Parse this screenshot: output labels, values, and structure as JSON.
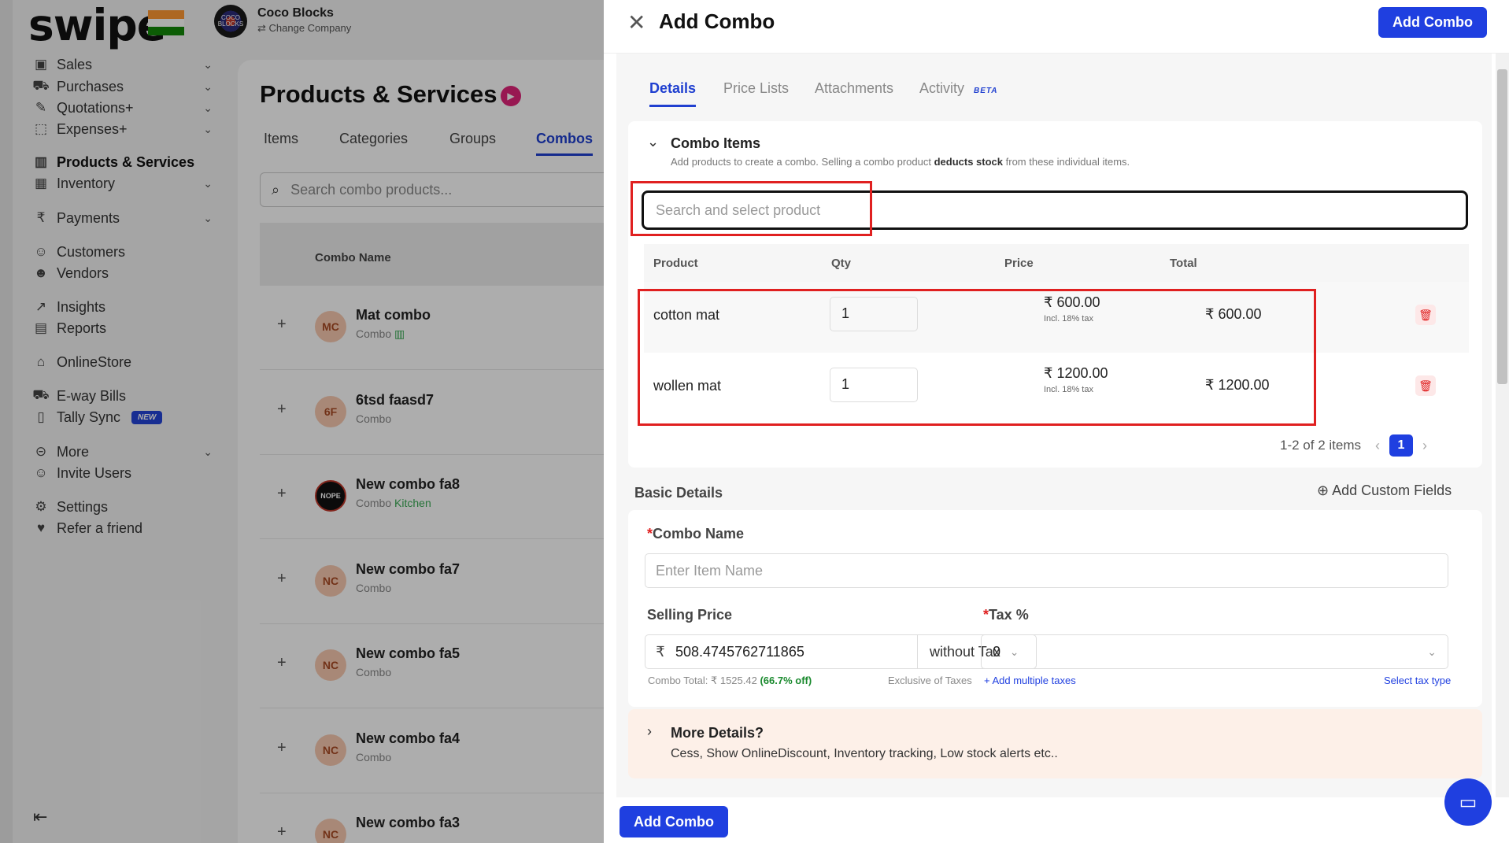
{
  "left": {
    "brand": "swipe",
    "company": {
      "name": "Coco Blocks",
      "change": "⇄ Change Company",
      "logo_text": "COCO BLOCKS"
    },
    "nav": [
      {
        "label": "Sales",
        "icon": "sales-icon",
        "glyph": "▣",
        "chevron": true
      },
      {
        "label": "Purchases",
        "icon": "cart-icon",
        "glyph": "⛟",
        "chevron": true
      },
      {
        "label": "Quotations+",
        "icon": "pen-icon",
        "glyph": "✎",
        "chevron": true
      },
      {
        "label": "Expenses+",
        "icon": "tag-icon",
        "glyph": "⬚",
        "chevron": true
      },
      {
        "label": "Products & Services",
        "icon": "barcode-icon",
        "glyph": "▥",
        "chevron": false,
        "active": true
      },
      {
        "label": "Inventory",
        "icon": "inventory-icon",
        "glyph": "▦",
        "chevron": true
      },
      {
        "label": "Payments",
        "icon": "rupee-icon",
        "glyph": "₹",
        "chevron": true
      },
      {
        "label": "Customers",
        "icon": "user-icon",
        "glyph": "☺",
        "chevron": false
      },
      {
        "label": "Vendors",
        "icon": "users-icon",
        "glyph": "☻",
        "chevron": false
      },
      {
        "label": "Insights",
        "icon": "chart-icon",
        "glyph": "↗",
        "chevron": false
      },
      {
        "label": "Reports",
        "icon": "report-icon",
        "glyph": "▤",
        "chevron": false
      },
      {
        "label": "OnlineStore",
        "icon": "store-icon",
        "glyph": "⌂",
        "chevron": false
      },
      {
        "label": "E-way Bills",
        "icon": "truck-icon",
        "glyph": "⛟",
        "chevron": false
      },
      {
        "label": "Tally Sync",
        "icon": "sync-icon",
        "glyph": "▯",
        "chevron": false,
        "badge": "NEW"
      },
      {
        "label": "More",
        "icon": "more-icon",
        "glyph": "⊝",
        "chevron": true
      },
      {
        "label": "Invite Users",
        "icon": "invite-icon",
        "glyph": "☺",
        "chevron": false
      },
      {
        "label": "Settings",
        "icon": "gear-icon",
        "glyph": "⚙",
        "chevron": false
      },
      {
        "label": "Refer a friend",
        "icon": "refer-icon",
        "glyph": "♥",
        "chevron": false
      }
    ],
    "page_title": "Products & Services",
    "tabs": [
      "Items",
      "Categories",
      "Groups",
      "Combos"
    ],
    "search_placeholder": "Search combo products...",
    "table_header": "Combo Name",
    "combos": [
      {
        "initials": "MC",
        "name": "Mat combo",
        "sub": "Combo",
        "extra": "▥"
      },
      {
        "initials": "6F",
        "name": "6tsd faasd7",
        "sub": "Combo",
        "extra": ""
      },
      {
        "initials": "NOPE",
        "name": "New combo fa8",
        "sub": "Combo",
        "extra": "Kitchen"
      },
      {
        "initials": "NC",
        "name": "New combo fa7",
        "sub": "Combo",
        "extra": ""
      },
      {
        "initials": "NC",
        "name": "New combo fa5",
        "sub": "Combo",
        "extra": ""
      },
      {
        "initials": "NC",
        "name": "New combo fa4",
        "sub": "Combo",
        "extra": ""
      },
      {
        "initials": "NC",
        "name": "New combo fa3",
        "sub": "",
        "extra": ""
      }
    ]
  },
  "drawer": {
    "title": "Add Combo",
    "add_button": "Add Combo",
    "tabs": [
      "Details",
      "Price Lists",
      "Attachments",
      "Activity"
    ],
    "beta": "BETA",
    "combo_items": {
      "title": "Combo Items",
      "subtitle_pre": "Add products to create a combo. Selling a combo product ",
      "subtitle_bold": "deducts stock",
      "subtitle_post": " from these individual items.",
      "search_placeholder": "Search and select product",
      "columns": [
        "Product",
        "Qty",
        "Price",
        "Total"
      ],
      "rows": [
        {
          "product": "cotton mat",
          "qty": "1",
          "price": "₹ 600.00",
          "tax_note": "Incl. 18% tax",
          "total": "₹ 600.00"
        },
        {
          "product": "wollen mat",
          "qty": "1",
          "price": "₹ 1200.00",
          "tax_note": "Incl. 18% tax",
          "total": "₹ 1200.00"
        }
      ],
      "pager_text": "1-2 of 2 items",
      "page": "1"
    },
    "basic_details": {
      "title": "Basic Details",
      "add_custom": "Add Custom Fields",
      "combo_name_label": "Combo Name",
      "combo_name_placeholder": "Enter Item Name",
      "selling_price_label": "Selling Price",
      "currency": "₹",
      "selling_price": "508.4745762711865",
      "tax_mode": "without Tax",
      "combo_total_pre": "Combo Total: ₹ 1525.42 ",
      "combo_total_off": "(66.7% off)",
      "exclusive_note": "Exclusive of Taxes",
      "tax_label": "Tax %",
      "tax_value": "0",
      "add_multiple_taxes": "+ Add multiple taxes",
      "select_tax_type": "Select tax type"
    },
    "more_details": {
      "title": "More Details?",
      "subtitle": "Cess, Show OnlineDiscount, Inventory tracking, Low stock alerts etc.."
    }
  },
  "colors": {
    "accent": "#1f3fe0",
    "highlight": "#e02020",
    "success": "#1a8a2e"
  }
}
